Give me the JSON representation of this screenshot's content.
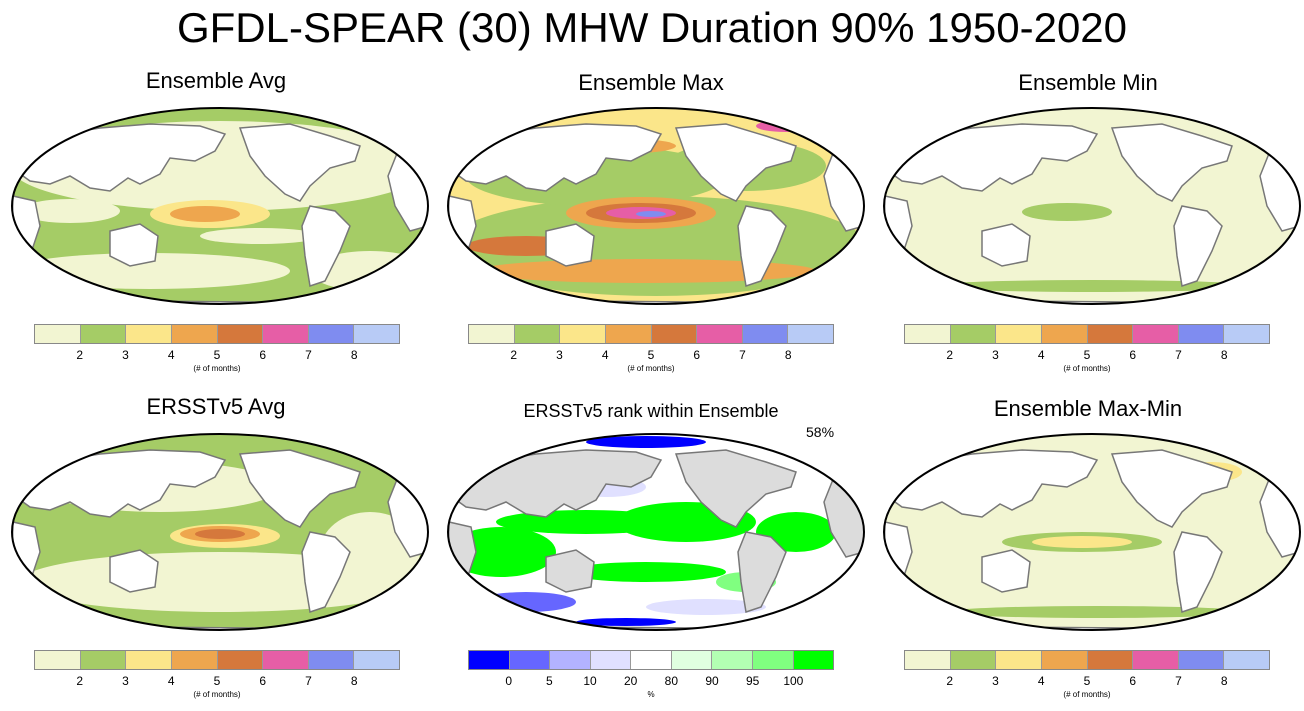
{
  "figure_title": "GFDL-SPEAR (30) MHW Duration 90% 1950-2020",
  "duration_colorbar": {
    "colors": [
      "#f2f5d2",
      "#a5cc66",
      "#fbe68a",
      "#eea64e",
      "#d5783c",
      "#e65ea6",
      "#7f8cf0",
      "#b8cbf6"
    ],
    "ticks": [
      "2",
      "3",
      "4",
      "5",
      "6",
      "7",
      "8"
    ],
    "unit": "(# of months)"
  },
  "rank_colorbar": {
    "colors": [
      "#0000ff",
      "#6666ff",
      "#b3b3ff",
      "#e0e0ff",
      "#ffffff",
      "#e0ffe0",
      "#b3ffb3",
      "#80ff80",
      "#00ff00"
    ],
    "ticks": [
      "0",
      "5",
      "10",
      "20",
      "80",
      "90",
      "95",
      "100"
    ],
    "unit": "%"
  },
  "panels": [
    {
      "title": "Ensemble Avg",
      "type": "duration"
    },
    {
      "title": "Ensemble Max",
      "type": "duration"
    },
    {
      "title": "Ensemble Min",
      "type": "duration"
    },
    {
      "title": "ERSSTv5 Avg",
      "type": "duration"
    },
    {
      "title": "ERSSTv5 rank within Ensemble",
      "type": "rank",
      "annotation": "58%"
    },
    {
      "title": "Ensemble Max-Min",
      "type": "duration"
    }
  ]
}
